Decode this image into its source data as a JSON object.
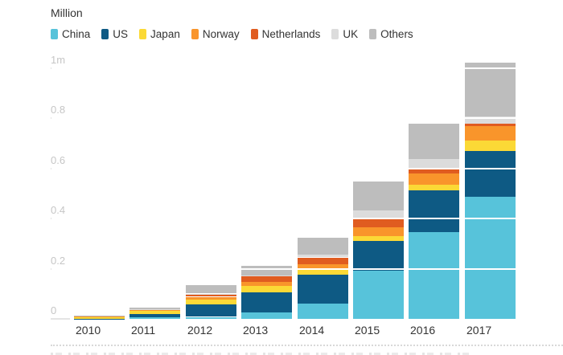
{
  "title": "Million",
  "legend": [
    {
      "label": "China",
      "color": "#57c3da"
    },
    {
      "label": "US",
      "color": "#0e5a84"
    },
    {
      "label": "Japan",
      "color": "#fbd936"
    },
    {
      "label": "Norway",
      "color": "#f9952b"
    },
    {
      "label": "Netherlands",
      "color": "#e05c20"
    },
    {
      "label": "UK",
      "color": "#dcdcdc"
    },
    {
      "label": "Others",
      "color": "#bdbdbd"
    }
  ],
  "chart_data": {
    "type": "bar",
    "stacked": true,
    "title": "Million",
    "ylabel": "Million",
    "ylim": [
      0,
      1.05
    ],
    "grid": "white-overlay-horizontal",
    "legend_position": "top",
    "categories": [
      "2010",
      "2011",
      "2012",
      "2013",
      "2014",
      "2015",
      "2016",
      "2017"
    ],
    "series": [
      {
        "name": "China",
        "color": "#57c3da",
        "values": [
          0.0,
          0.005,
          0.008,
          0.025,
          0.062,
          0.192,
          0.346,
          0.487
        ]
      },
      {
        "name": "US",
        "color": "#0e5a84",
        "values": [
          0.001,
          0.015,
          0.05,
          0.08,
          0.115,
          0.119,
          0.167,
          0.183
        ]
      },
      {
        "name": "Japan",
        "color": "#fbd936",
        "values": [
          0.007,
          0.012,
          0.02,
          0.025,
          0.023,
          0.019,
          0.022,
          0.042
        ]
      },
      {
        "name": "Norway",
        "color": "#f9952b",
        "values": [
          0.003,
          0.005,
          0.01,
          0.018,
          0.019,
          0.035,
          0.045,
          0.057
        ]
      },
      {
        "name": "Netherlands",
        "color": "#e05c20",
        "values": [
          0.0,
          0.001,
          0.01,
          0.021,
          0.026,
          0.036,
          0.023,
          0.01
        ]
      },
      {
        "name": "UK",
        "color": "#dcdcdc",
        "values": [
          0.0,
          0.001,
          0.003,
          0.003,
          0.01,
          0.032,
          0.035,
          0.029
        ]
      },
      {
        "name": "Others",
        "color": "#bdbdbd",
        "values": [
          0.001,
          0.006,
          0.035,
          0.04,
          0.068,
          0.115,
          0.141,
          0.216
        ]
      }
    ],
    "yticks": [
      {
        "value": 0.0,
        "label": "0"
      },
      {
        "value": 0.2,
        "label": "0.2"
      },
      {
        "value": 0.4,
        "label": "0.4"
      },
      {
        "value": 0.6,
        "label": "0.6"
      },
      {
        "value": 0.8,
        "label": "0.8"
      },
      {
        "value": 1.0,
        "label": "1m"
      }
    ]
  }
}
